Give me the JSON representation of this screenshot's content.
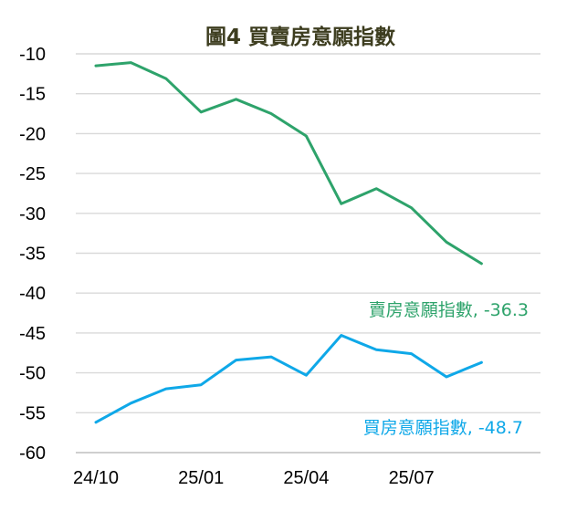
{
  "chart_data": {
    "type": "line",
    "title": "圖4  買賣房意願指數",
    "ylim": [
      -60,
      -10
    ],
    "yticks": [
      "-10",
      "-15",
      "-20",
      "-25",
      "-30",
      "-35",
      "-40",
      "-45",
      "-50",
      "-55",
      "-60"
    ],
    "ytick_values": [
      -10,
      -15,
      -20,
      -25,
      -30,
      -35,
      -40,
      -45,
      -50,
      -55,
      -60
    ],
    "x": [
      "2024-10",
      "2024-11",
      "2024-12",
      "2025-01",
      "2025-02",
      "2025-03",
      "2025-04",
      "2025-05",
      "2025-06",
      "2025-07",
      "2025-08",
      "2025-09"
    ],
    "xtick_labels": [
      "24/10",
      "25/01",
      "25/04",
      "25/07"
    ],
    "xtick_indices": [
      0,
      3,
      6,
      9
    ],
    "grid": true,
    "series": [
      {
        "name": "賣房意願指數",
        "color": "#2ea36b",
        "values": [
          -11.5,
          -11.1,
          -13.1,
          -17.3,
          -15.7,
          -17.5,
          -20.3,
          -28.8,
          -26.9,
          -29.3,
          -33.6,
          -36.3
        ]
      },
      {
        "name": "買房意願指數",
        "color": "#0fa8e8",
        "values": [
          -56.2,
          -53.8,
          -52.0,
          -51.5,
          -48.4,
          -48.0,
          -50.3,
          -45.3,
          -47.1,
          -47.6,
          -50.5,
          -48.7
        ]
      }
    ],
    "annotations": [
      {
        "text": "賣房意願指數, -36.3",
        "color": "#2ea36b"
      },
      {
        "text": "買房意願指數, -48.7",
        "color": "#0fa8e8"
      }
    ]
  }
}
